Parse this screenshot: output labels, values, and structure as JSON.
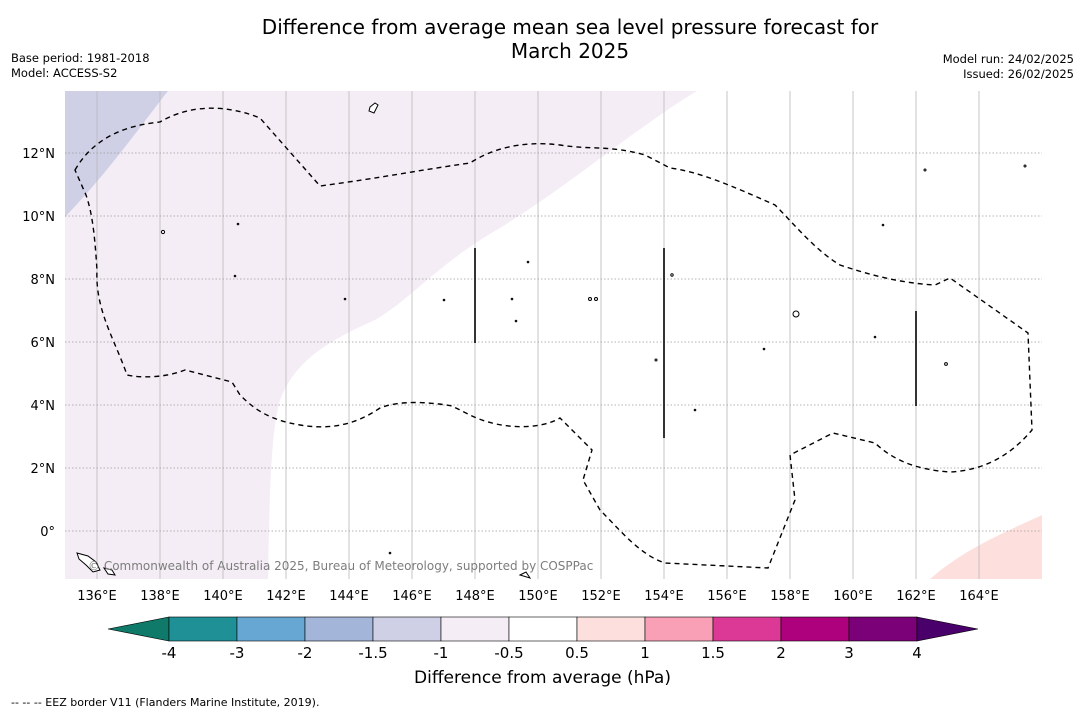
{
  "title_line1": "Difference from average mean sea level pressure forecast for",
  "title_line2": "March 2025",
  "base_period": "Base period: 1981-2018",
  "model": "Model: ACCESS-S2",
  "model_run": "Model run: 24/02/2025",
  "issued": "Issued: 26/02/2025",
  "copyright": "© Commonwealth of Australia 2025, Bureau of Meteorology, supported by COSPPac",
  "footnote": "--  --  -- EEZ border V11 (Flanders Marine Institute, 2019).",
  "colorbar": {
    "title": "Difference from average (hPa)",
    "ticks": [
      "-4",
      "-3",
      "-2",
      "-1.5",
      "-1",
      "-0.5",
      "0.5",
      "1",
      "1.5",
      "2",
      "3",
      "4"
    ],
    "colors": [
      "#1e9096",
      "#66a8d3",
      "#a3b5d9",
      "#cfd0e6",
      "#f4edf5",
      "#ffffff",
      "#fde0de",
      "#f99fb6",
      "#dc3996",
      "#ae017e",
      "#7a0177"
    ],
    "extend_low_color": "#0f7a6a",
    "extend_high_color": "#49006a"
  },
  "map": {
    "lon_labels": [
      "136°E",
      "138°E",
      "140°E",
      "142°E",
      "144°E",
      "146°E",
      "148°E",
      "150°E",
      "152°E",
      "154°E",
      "156°E",
      "158°E",
      "160°E",
      "162°E",
      "164°E"
    ],
    "lat_labels": [
      "12°N",
      "10°N",
      "8°N",
      "6°N",
      "4°N",
      "2°N",
      "0°"
    ],
    "grid": "on"
  }
}
